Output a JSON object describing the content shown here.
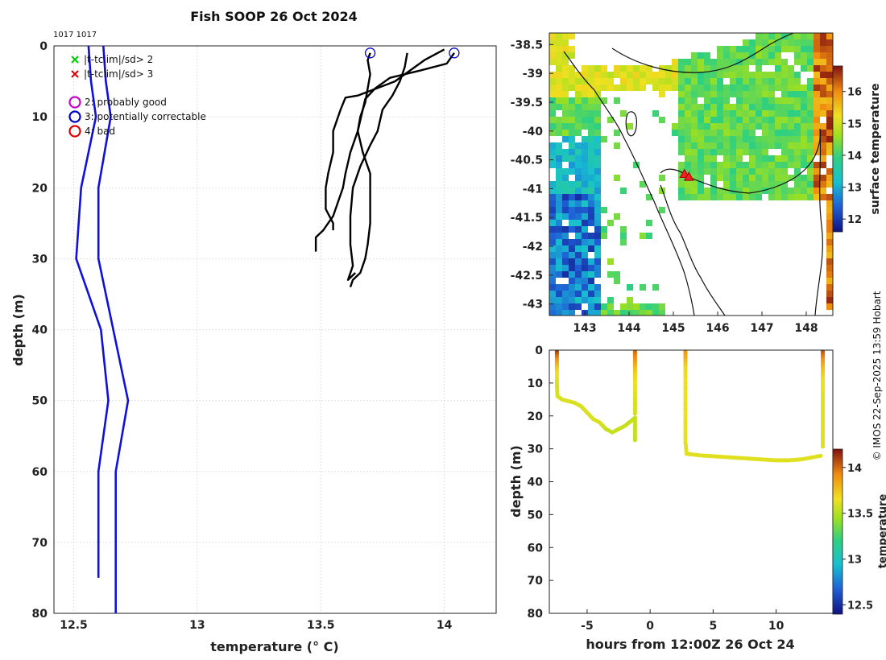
{
  "title": "Fish SOOP 26 Oct 2024",
  "cast_ids": "1017 1017",
  "credit": "© IMOS 22-Sep-2025 13:59 Hobart",
  "colors": {
    "clim": "#1010dd",
    "profile": "#000000",
    "flag_good": "#cc00cc",
    "flag_corr": "#0000cc",
    "flag_bad": "#dd0000",
    "sd2": "#00cc00",
    "sd3": "#dd0000"
  },
  "legend": {
    "sd2": "|t-tclim|/sd> 2",
    "sd3": "|t-tclim|/sd> 3",
    "flag2": "2: probably good",
    "flag3": "3: potentially correctable",
    "flag4": "4: bad"
  },
  "chart_data": [
    {
      "id": "profile",
      "type": "line",
      "xlabel": "temperature (° C)",
      "ylabel": "depth (m)",
      "xlim": [
        12.42,
        14.21
      ],
      "ylim": [
        0,
        80
      ],
      "xticks": [
        12.5,
        13,
        13.5,
        14
      ],
      "yticks": [
        0,
        10,
        20,
        30,
        40,
        50,
        60,
        70,
        80
      ],
      "grid": true,
      "climatology": [
        {
          "name": "clim-left",
          "points": [
            [
              12.56,
              0
            ],
            [
              12.57,
              5
            ],
            [
              12.59,
              10
            ],
            [
              12.53,
              20
            ],
            [
              12.51,
              30
            ],
            [
              12.61,
              40
            ],
            [
              12.64,
              50
            ],
            [
              12.6,
              60
            ],
            [
              12.6,
              75
            ]
          ]
        },
        {
          "name": "clim-right",
          "points": [
            [
              12.62,
              0
            ],
            [
              12.63,
              5
            ],
            [
              12.65,
              10
            ],
            [
              12.6,
              20
            ],
            [
              12.6,
              30
            ],
            [
              12.66,
              40
            ],
            [
              12.72,
              50
            ],
            [
              12.67,
              60
            ],
            [
              12.67,
              80
            ]
          ]
        }
      ],
      "profiles": [
        {
          "name": "cast-a",
          "points": [
            [
              13.7,
              1
            ],
            [
              13.69,
              2
            ],
            [
              13.7,
              4
            ],
            [
              13.69,
              6
            ],
            [
              13.68,
              8
            ],
            [
              13.66,
              10
            ],
            [
              13.65,
              12
            ],
            [
              13.67,
              15
            ],
            [
              13.7,
              18
            ],
            [
              13.7,
              20
            ],
            [
              13.7,
              25
            ],
            [
              13.69,
              28
            ],
            [
              13.68,
              30
            ],
            [
              13.66,
              32
            ],
            [
              13.63,
              33
            ],
            [
              13.62,
              34
            ]
          ]
        },
        {
          "name": "cast-b",
          "points": [
            [
              14.04,
              1
            ],
            [
              14.01,
              2.5
            ],
            [
              13.9,
              3.5
            ],
            [
              13.78,
              4.5
            ],
            [
              13.72,
              6
            ],
            [
              13.68,
              7.5
            ],
            [
              13.67,
              9
            ],
            [
              13.65,
              12
            ],
            [
              13.62,
              15
            ],
            [
              13.6,
              18
            ],
            [
              13.59,
              20
            ],
            [
              13.57,
              22
            ],
            [
              13.55,
              24
            ],
            [
              13.53,
              25
            ],
            [
              13.51,
              26
            ],
            [
              13.48,
              27
            ],
            [
              13.48,
              29
            ]
          ]
        },
        {
          "name": "cast-c",
          "points": [
            [
              14.0,
              0.5
            ],
            [
              13.92,
              2
            ],
            [
              13.8,
              5
            ],
            [
              13.65,
              7
            ],
            [
              13.6,
              7.3
            ],
            [
              13.58,
              9
            ],
            [
              13.55,
              12
            ],
            [
              13.55,
              15
            ],
            [
              13.53,
              18
            ],
            [
              13.52,
              20
            ],
            [
              13.52,
              23
            ],
            [
              13.55,
              25
            ],
            [
              13.55,
              26
            ]
          ]
        },
        {
          "name": "cast-d",
          "points": [
            [
              13.85,
              1
            ],
            [
              13.84,
              3
            ],
            [
              13.82,
              5
            ],
            [
              13.79,
              7
            ],
            [
              13.75,
              9
            ],
            [
              13.73,
              12
            ],
            [
              13.7,
              14
            ],
            [
              13.66,
              17
            ],
            [
              13.63,
              20
            ],
            [
              13.62,
              24
            ],
            [
              13.62,
              28
            ],
            [
              13.63,
              31
            ],
            [
              13.61,
              33
            ],
            [
              13.64,
              32
            ]
          ]
        }
      ],
      "flag3_markers": [
        [
          13.7,
          1
        ],
        [
          14.04,
          1
        ]
      ]
    },
    {
      "id": "map",
      "type": "heatmap",
      "xticks": [
        143,
        144,
        145,
        146,
        147,
        148
      ],
      "yticks": [
        -38.5,
        -39,
        -39.5,
        -40,
        -40.5,
        -41,
        -41.5,
        -42,
        -42.5,
        -43
      ],
      "xlim": [
        142.2,
        148.6
      ],
      "ylim": [
        -43.2,
        -38.3
      ],
      "colorbar_label": "surface temperature",
      "colorbar_ticks": [
        12,
        13,
        14,
        15,
        16
      ],
      "colorbar_range": [
        11.6,
        16.8
      ],
      "markers": [
        [
          145.25,
          -40.75
        ],
        [
          145.35,
          -40.8
        ]
      ]
    },
    {
      "id": "timeseries",
      "type": "scatter",
      "xlabel": "hours from 12:00Z 26 Oct 24",
      "ylabel": "depth (m)",
      "xlim": [
        -8,
        14.5
      ],
      "ylim": [
        0,
        80
      ],
      "xticks": [
        -5,
        0,
        5,
        10
      ],
      "yticks": [
        0,
        10,
        20,
        30,
        40,
        50,
        60,
        70,
        80
      ],
      "colorbar_label": "temperature",
      "colorbar_ticks": [
        12.5,
        13,
        13.5,
        14
      ],
      "colorbar_range": [
        12.4,
        14.2
      ],
      "segments": [
        {
          "name": "seg-1",
          "points": [
            [
              -7.4,
              0.5,
              14.1
            ],
            [
              -7.4,
              3,
              13.9
            ],
            [
              -7.4,
              6,
              13.7
            ],
            [
              -7.4,
              10,
              13.6
            ],
            [
              -7.35,
              14,
              13.6
            ],
            [
              -7,
              15,
              13.6
            ],
            [
              -6,
              16,
              13.6
            ],
            [
              -5.5,
              17,
              13.6
            ],
            [
              -5,
              19,
              13.6
            ],
            [
              -4.5,
              21,
              13.6
            ],
            [
              -4,
              22,
              13.6
            ],
            [
              -3.5,
              24,
              13.55
            ],
            [
              -3,
              25,
              13.55
            ],
            [
              -2.5,
              24,
              13.55
            ],
            [
              -2,
              23,
              13.55
            ],
            [
              -1.5,
              21.5,
              13.55
            ],
            [
              -1.2,
              20.5,
              13.55
            ],
            [
              -1.2,
              24,
              13.55
            ],
            [
              -1.2,
              28,
              13.55
            ]
          ]
        },
        {
          "name": "seg-2",
          "points": [
            [
              -1.2,
              0.5,
              14.0
            ],
            [
              -1.2,
              3,
              13.9
            ],
            [
              -1.2,
              6,
              13.75
            ],
            [
              -1.2,
              10,
              13.65
            ],
            [
              -1.2,
              15,
              13.6
            ],
            [
              -1.2,
              20,
              13.58
            ]
          ]
        },
        {
          "name": "seg-3",
          "points": [
            [
              2.8,
              0.5,
              13.9
            ],
            [
              2.8,
              5,
              13.7
            ],
            [
              2.8,
              10,
              13.65
            ],
            [
              2.8,
              20,
              13.65
            ],
            [
              2.8,
              28,
              13.63
            ],
            [
              2.9,
              31.5,
              13.62
            ],
            [
              4,
              32,
              13.62
            ],
            [
              6,
              32.5,
              13.62
            ],
            [
              8,
              33,
              13.62
            ],
            [
              10,
              33.5,
              13.62
            ],
            [
              11,
              33.5,
              13.62
            ],
            [
              12,
              33.2,
              13.62
            ],
            [
              13,
              32.5,
              13.62
            ],
            [
              13.7,
              32,
              13.6
            ]
          ]
        },
        {
          "name": "seg-4",
          "points": [
            [
              13.7,
              0.5,
              14.05
            ],
            [
              13.7,
              3,
              13.9
            ],
            [
              13.7,
              6,
              13.75
            ],
            [
              13.7,
              10,
              13.65
            ],
            [
              13.7,
              15,
              13.62
            ],
            [
              13.7,
              20,
              13.62
            ],
            [
              13.7,
              25,
              13.62
            ],
            [
              13.7,
              30,
              13.62
            ]
          ]
        }
      ]
    }
  ]
}
